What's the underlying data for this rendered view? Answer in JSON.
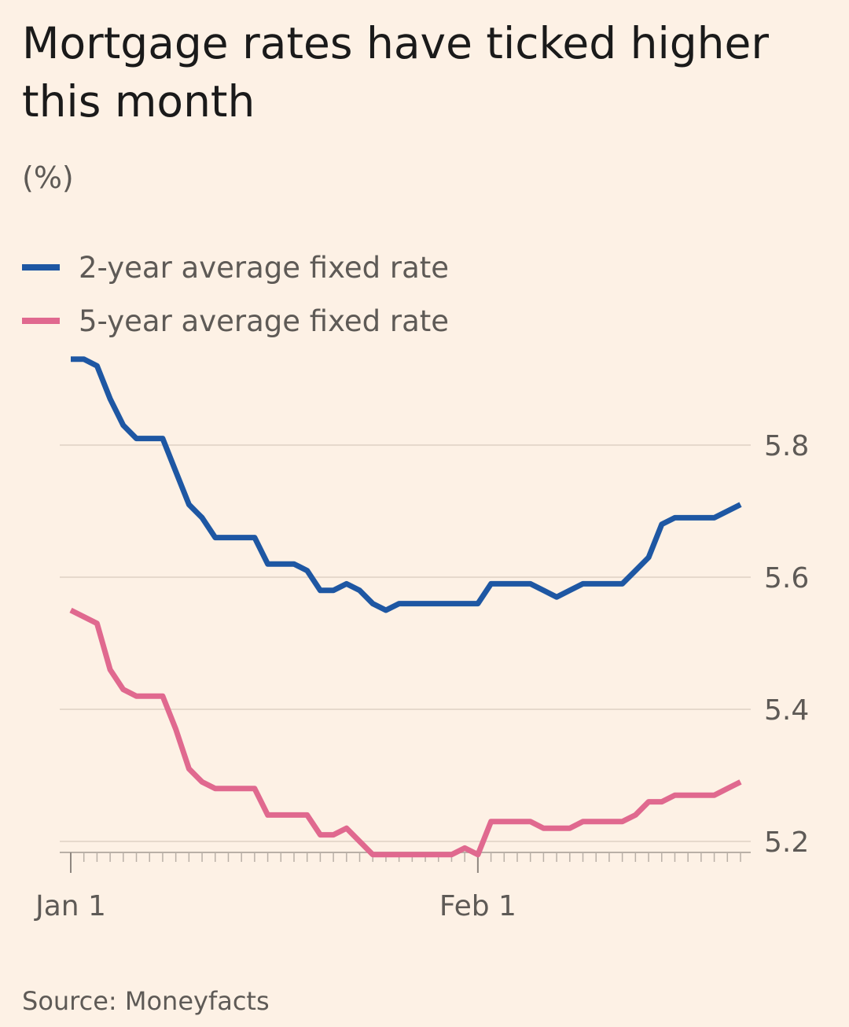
{
  "title": "Mortgage rates have ticked higher this month",
  "unit_label": "(%)",
  "source": "Source: Moneyfacts",
  "colors": {
    "background": "#fdf1e5",
    "series_2yr": "#1e57a3",
    "series_5yr": "#e0698f",
    "grid": "#e6d9cc",
    "text_muted": "#5e5a56"
  },
  "legend": [
    {
      "label": "2-year average fixed rate",
      "color": "#1e57a3"
    },
    {
      "label": "5-year average fixed rate",
      "color": "#e0698f"
    }
  ],
  "chart_data": {
    "type": "line",
    "title": "Mortgage rates have ticked higher this month",
    "ylabel": "(%)",
    "xlabel": "",
    "x_tick_labels": [
      "Jan 1",
      "Feb 1"
    ],
    "x_tick_days": [
      0,
      31
    ],
    "x_range_days": [
      0,
      51
    ],
    "ylim": [
      5.17,
      5.95
    ],
    "y_ticks": [
      5.2,
      5.4,
      5.6,
      5.8
    ],
    "y_tick_labels": [
      "5.2",
      "5.4",
      "5.6",
      "5.8"
    ],
    "grid": true,
    "legend_position": "top-left",
    "series": [
      {
        "name": "2-year average fixed rate",
        "color": "#1e57a3",
        "points": [
          [
            0,
            5.93
          ],
          [
            1,
            5.93
          ],
          [
            2,
            5.92
          ],
          [
            3,
            5.87
          ],
          [
            4,
            5.83
          ],
          [
            5,
            5.81
          ],
          [
            6,
            5.81
          ],
          [
            7,
            5.81
          ],
          [
            8,
            5.76
          ],
          [
            9,
            5.71
          ],
          [
            10,
            5.69
          ],
          [
            11,
            5.66
          ],
          [
            12,
            5.66
          ],
          [
            13,
            5.66
          ],
          [
            14,
            5.66
          ],
          [
            15,
            5.62
          ],
          [
            16,
            5.62
          ],
          [
            17,
            5.62
          ],
          [
            18,
            5.61
          ],
          [
            19,
            5.58
          ],
          [
            20,
            5.58
          ],
          [
            21,
            5.59
          ],
          [
            22,
            5.58
          ],
          [
            23,
            5.56
          ],
          [
            24,
            5.55
          ],
          [
            25,
            5.56
          ],
          [
            26,
            5.56
          ],
          [
            27,
            5.56
          ],
          [
            28,
            5.56
          ],
          [
            29,
            5.56
          ],
          [
            30,
            5.56
          ],
          [
            31,
            5.56
          ],
          [
            32,
            5.59
          ],
          [
            33,
            5.59
          ],
          [
            34,
            5.59
          ],
          [
            35,
            5.59
          ],
          [
            36,
            5.58
          ],
          [
            37,
            5.57
          ],
          [
            38,
            5.58
          ],
          [
            39,
            5.59
          ],
          [
            40,
            5.59
          ],
          [
            41,
            5.59
          ],
          [
            42,
            5.59
          ],
          [
            43,
            5.61
          ],
          [
            44,
            5.63
          ],
          [
            45,
            5.68
          ],
          [
            46,
            5.69
          ],
          [
            47,
            5.69
          ],
          [
            48,
            5.69
          ],
          [
            49,
            5.69
          ],
          [
            50,
            5.7
          ],
          [
            51,
            5.71
          ]
        ]
      },
      {
        "name": "5-year average fixed rate",
        "color": "#e0698f",
        "points": [
          [
            0,
            5.55
          ],
          [
            1,
            5.54
          ],
          [
            2,
            5.53
          ],
          [
            3,
            5.46
          ],
          [
            4,
            5.43
          ],
          [
            5,
            5.42
          ],
          [
            6,
            5.42
          ],
          [
            7,
            5.42
          ],
          [
            8,
            5.37
          ],
          [
            9,
            5.31
          ],
          [
            10,
            5.29
          ],
          [
            11,
            5.28
          ],
          [
            12,
            5.28
          ],
          [
            13,
            5.28
          ],
          [
            14,
            5.28
          ],
          [
            15,
            5.24
          ],
          [
            16,
            5.24
          ],
          [
            17,
            5.24
          ],
          [
            18,
            5.24
          ],
          [
            19,
            5.21
          ],
          [
            20,
            5.21
          ],
          [
            21,
            5.22
          ],
          [
            22,
            5.2
          ],
          [
            23,
            5.18
          ],
          [
            24,
            5.18
          ],
          [
            25,
            5.18
          ],
          [
            26,
            5.18
          ],
          [
            27,
            5.18
          ],
          [
            28,
            5.18
          ],
          [
            29,
            5.18
          ],
          [
            30,
            5.19
          ],
          [
            31,
            5.18
          ],
          [
            32,
            5.23
          ],
          [
            33,
            5.23
          ],
          [
            34,
            5.23
          ],
          [
            35,
            5.23
          ],
          [
            36,
            5.22
          ],
          [
            37,
            5.22
          ],
          [
            38,
            5.22
          ],
          [
            39,
            5.23
          ],
          [
            40,
            5.23
          ],
          [
            41,
            5.23
          ],
          [
            42,
            5.23
          ],
          [
            43,
            5.24
          ],
          [
            44,
            5.26
          ],
          [
            45,
            5.26
          ],
          [
            46,
            5.27
          ],
          [
            47,
            5.27
          ],
          [
            48,
            5.27
          ],
          [
            49,
            5.27
          ],
          [
            50,
            5.28
          ],
          [
            51,
            5.29
          ]
        ]
      }
    ]
  }
}
